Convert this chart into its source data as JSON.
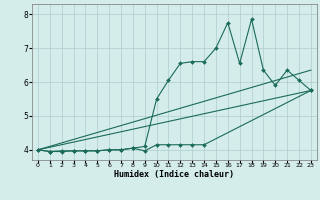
{
  "xlabel": "Humidex (Indice chaleur)",
  "ylabel": "",
  "bg_color": "#d4ecea",
  "grid_color": "#b0cccc",
  "line_color": "#1a6b5a",
  "xlim": [
    -0.5,
    23.5
  ],
  "ylim": [
    3.7,
    8.3
  ],
  "xticks": [
    0,
    1,
    2,
    3,
    4,
    5,
    6,
    7,
    8,
    9,
    10,
    11,
    12,
    13,
    14,
    15,
    16,
    17,
    18,
    19,
    20,
    21,
    22,
    23
  ],
  "yticks": [
    4,
    5,
    6,
    7,
    8
  ],
  "series": [
    {
      "x": [
        0,
        1,
        2,
        3,
        4,
        5,
        6,
        7,
        8,
        9,
        10,
        11,
        12,
        13,
        14,
        15,
        16,
        17,
        18,
        19,
        20,
        21,
        22,
        23
      ],
      "y": [
        4.0,
        3.95,
        3.95,
        3.97,
        3.97,
        3.97,
        4.0,
        4.0,
        4.05,
        4.1,
        5.5,
        6.05,
        6.55,
        6.6,
        6.6,
        7.0,
        7.75,
        6.55,
        7.85,
        6.35,
        5.9,
        6.35,
        6.05,
        5.75
      ],
      "marker": "D",
      "markersize": 2.0,
      "linewidth": 0.8,
      "has_marker": true
    },
    {
      "x": [
        0,
        23
      ],
      "y": [
        4.0,
        6.35
      ],
      "marker": null,
      "markersize": 0,
      "linewidth": 0.8,
      "has_marker": false
    },
    {
      "x": [
        0,
        23
      ],
      "y": [
        4.0,
        5.75
      ],
      "marker": null,
      "markersize": 0,
      "linewidth": 0.8,
      "has_marker": false
    },
    {
      "x": [
        0,
        1,
        2,
        3,
        4,
        5,
        6,
        7,
        8,
        9,
        10,
        11,
        12,
        13,
        14,
        23
      ],
      "y": [
        4.0,
        3.95,
        3.97,
        3.97,
        3.97,
        3.97,
        4.0,
        4.0,
        4.05,
        3.97,
        4.15,
        4.15,
        4.15,
        4.15,
        4.15,
        5.75
      ],
      "marker": "D",
      "markersize": 2.0,
      "linewidth": 0.8,
      "has_marker": true
    }
  ]
}
